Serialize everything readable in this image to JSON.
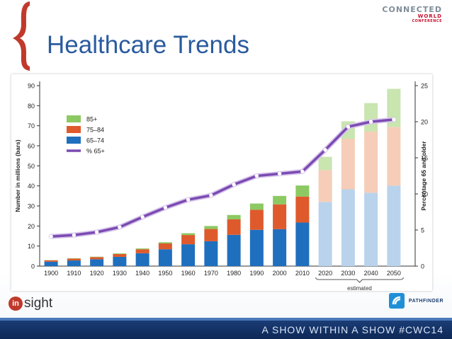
{
  "slide": {
    "title": "Healthcare Trends",
    "logo_line1": "CONNECTED",
    "logo_line2": "WORLD",
    "logo_line3": "CONFERENCE",
    "insight_logo": "sight",
    "pathfinder_logo": "PATHFINDER",
    "footer_tagline": "A SHOW WITHIN A SHOW  #CWC14",
    "colors": {
      "title": "#2a5b9f",
      "age_65_74": "#1f6fbf",
      "age_75_84": "#de5a2c",
      "age_85_plus": "#8cc963",
      "pct_line": "#7b4ab3",
      "footer": "#0e2856"
    }
  },
  "chart_data": {
    "type": "bar",
    "stacked": true,
    "categories": [
      "1900",
      "1910",
      "1920",
      "1930",
      "1940",
      "1950",
      "1960",
      "1970",
      "1980",
      "1990",
      "2000",
      "2010",
      "2020",
      "2030",
      "2040",
      "2050"
    ],
    "estimated_categories": [
      "2020",
      "2030",
      "2040",
      "2050"
    ],
    "estimated_label": "estimated",
    "series": [
      {
        "name": "65–74",
        "color": "#1f6fbf",
        "values": [
          2.2,
          2.8,
          3.4,
          4.6,
          6.4,
          8.4,
          10.9,
          12.4,
          15.6,
          18.1,
          18.4,
          21.7,
          32.0,
          38.3,
          36.6,
          40.1
        ]
      },
      {
        "name": "75–84",
        "color": "#de5a2c",
        "values": [
          0.7,
          0.9,
          1.1,
          1.4,
          2.0,
          2.9,
          4.6,
          6.1,
          7.7,
          10.0,
          12.4,
          13.0,
          15.9,
          25.2,
          30.5,
          29.3
        ]
      },
      {
        "name": "85+",
        "color": "#8cc963",
        "values": [
          0.1,
          0.2,
          0.2,
          0.3,
          0.4,
          0.6,
          0.9,
          1.5,
          2.2,
          3.1,
          4.2,
          5.5,
          6.6,
          8.7,
          14.2,
          19.0
        ]
      }
    ],
    "line_series": {
      "name": "% 65+",
      "color": "#7b4ab3",
      "axis": "right",
      "values": [
        4.1,
        4.3,
        4.7,
        5.4,
        6.8,
        8.1,
        9.2,
        9.8,
        11.3,
        12.5,
        12.8,
        13.1,
        16.1,
        19.3,
        20.0,
        20.3
      ]
    },
    "ylabel_left": "Number in millions (bars)",
    "ylabel_right": "Percentage 65 and older",
    "ylim_left": [
      0,
      90
    ],
    "ylim_right": [
      0,
      25
    ],
    "yticks_left": [
      0,
      10,
      20,
      30,
      40,
      50,
      60,
      70,
      80,
      90
    ],
    "yticks_right": [
      0,
      5,
      10,
      15,
      20,
      25
    ],
    "legend_position": "top-left"
  }
}
